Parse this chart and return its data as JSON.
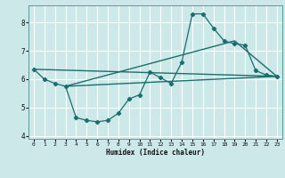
{
  "xlabel": "Humidex (Indice chaleur)",
  "background_color": "#cce8e8",
  "grid_color": "#ffffff",
  "line_color": "#1a6e6e",
  "xlim": [
    -0.5,
    23.5
  ],
  "ylim": [
    3.9,
    8.6
  ],
  "yticks": [
    4,
    5,
    6,
    7,
    8
  ],
  "xticks": [
    0,
    1,
    2,
    3,
    4,
    5,
    6,
    7,
    8,
    9,
    10,
    11,
    12,
    13,
    14,
    15,
    16,
    17,
    18,
    19,
    20,
    21,
    22,
    23
  ],
  "series1_x": [
    0,
    1,
    2,
    3,
    4,
    5,
    6,
    7,
    8,
    9,
    10,
    11,
    12,
    13,
    14,
    15,
    16,
    17,
    18,
    19,
    20,
    21,
    22,
    23
  ],
  "series1_y": [
    6.35,
    6.0,
    5.85,
    5.75,
    4.65,
    4.55,
    4.5,
    4.55,
    4.8,
    5.3,
    5.45,
    6.25,
    6.05,
    5.85,
    6.6,
    8.3,
    8.3,
    7.8,
    7.35,
    7.25,
    7.2,
    6.3,
    6.15,
    6.1
  ],
  "series2_x": [
    0,
    23
  ],
  "series2_y": [
    6.35,
    6.1
  ],
  "series3_x": [
    3,
    23
  ],
  "series3_y": [
    5.75,
    6.1
  ],
  "series4_x": [
    3,
    19,
    23
  ],
  "series4_y": [
    5.75,
    7.35,
    6.1
  ]
}
